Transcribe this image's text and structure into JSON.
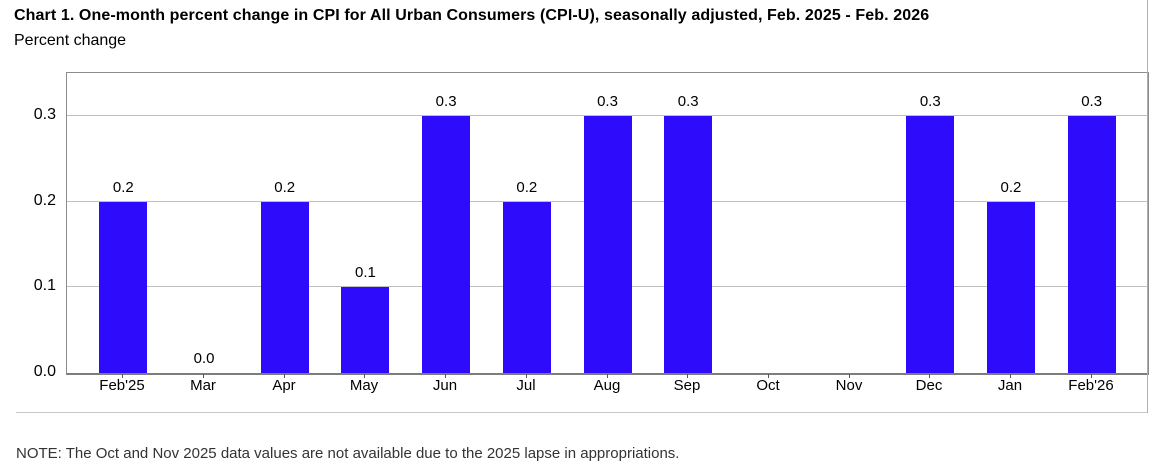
{
  "chart": {
    "title": "Chart 1. One-month percent change in CPI for All Urban Consumers (CPI-U), seasonally adjusted, Feb. 2025 - Feb. 2026",
    "subtitle": "Percent change"
  },
  "note": {
    "text": "NOTE: The Oct and Nov 2025 data values are not available due to the 2025 lapse in appropriations."
  },
  "chart_data": {
    "type": "bar",
    "title": "Chart 1. One-month percent change in CPI for All Urban Consumers (CPI-U), seasonally adjusted, Feb. 2025 - Feb. 2026",
    "subtitle": "Percent change",
    "categories": [
      "Feb'25",
      "Mar",
      "Apr",
      "May",
      "Jun",
      "Jul",
      "Aug",
      "Sep",
      "Oct",
      "Nov",
      "Dec",
      "Jan",
      "Feb'26"
    ],
    "values": [
      0.2,
      0.0,
      0.2,
      0.1,
      0.3,
      0.2,
      0.3,
      0.3,
      null,
      null,
      0.3,
      0.2,
      0.3
    ],
    "data_labels": [
      "0.2",
      "0.0",
      "0.2",
      "0.1",
      "0.3",
      "0.2",
      "0.3",
      "0.3",
      "",
      "",
      "0.3",
      "0.2",
      "0.3"
    ],
    "xlabel": "",
    "ylabel": "Percent change",
    "ylim": [
      0,
      0.35
    ],
    "yticks": [
      0.0,
      0.1,
      0.2,
      0.3
    ],
    "ytick_labels": [
      "0.0",
      "0.1",
      "0.2",
      "0.3"
    ],
    "grid": true,
    "legend": false
  },
  "colors": {
    "bar": "#2e0bfa",
    "gridline": "#bfbfbf",
    "axis_border": "#8c8c8c",
    "frame": "#aeaeae",
    "title_text": "#000000",
    "note_text": "#333333"
  }
}
